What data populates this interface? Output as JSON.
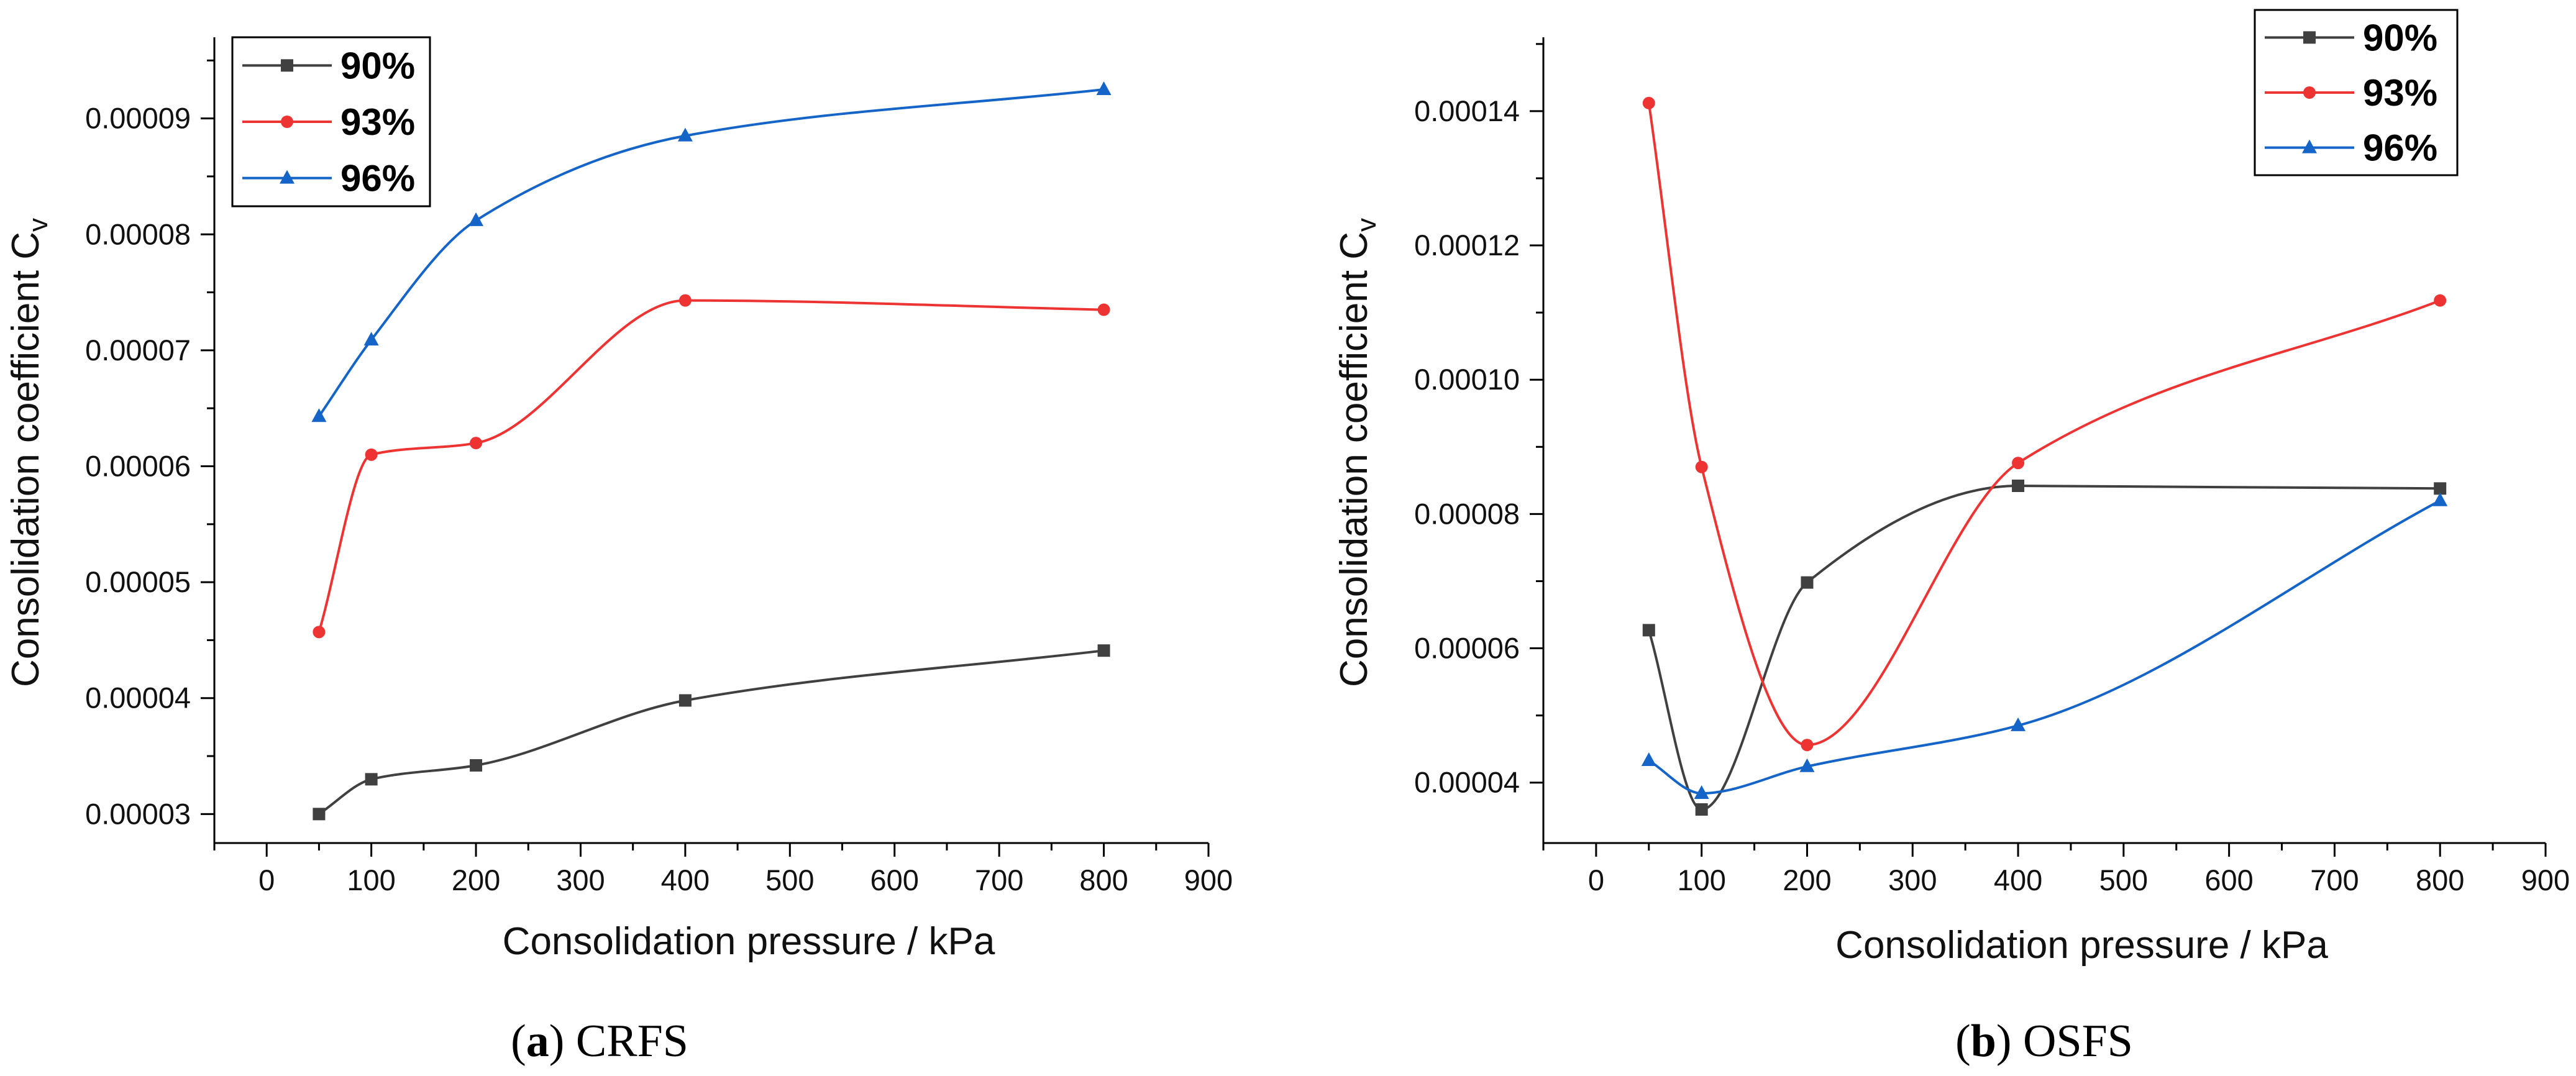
{
  "chart_data": [
    {
      "type": "line",
      "panel_letter": "a",
      "panel_title": "CRFS",
      "xlabel": "Consolidation pressure / kPa",
      "ylabel_main": "Consolidation coefficient C",
      "ylabel_sub": "v",
      "xlim": [
        -50,
        900
      ],
      "ylim": [
        2.75e-05,
        9.7e-05
      ],
      "x_ticks": [
        0,
        100,
        200,
        300,
        400,
        500,
        600,
        700,
        800,
        900
      ],
      "x_tick_labels": [
        "0",
        "100",
        "200",
        "300",
        "400",
        "500",
        "600",
        "700",
        "800",
        "900"
      ],
      "y_ticks": [
        3e-05,
        4e-05,
        5e-05,
        6e-05,
        7e-05,
        8e-05,
        9e-05
      ],
      "y_tick_labels": [
        "0.00003",
        "0.00004",
        "0.00005",
        "0.00006",
        "0.00007",
        "0.00008",
        "0.00009"
      ],
      "grid": false,
      "legend_position": "top-left",
      "x": [
        50,
        100,
        200,
        400,
        800
      ],
      "series": [
        {
          "name": "90%",
          "color": "#404040",
          "marker": "square",
          "values": [
            3e-05,
            3.3e-05,
            3.42e-05,
            3.98e-05,
            4.41e-05
          ]
        },
        {
          "name": "93%",
          "color": "#ee3333",
          "marker": "circle",
          "values": [
            4.57e-05,
            6.1e-05,
            6.2e-05,
            7.43e-05,
            7.35e-05
          ]
        },
        {
          "name": "96%",
          "color": "#1565c8",
          "marker": "triangle",
          "values": [
            6.43e-05,
            7.09e-05,
            8.12e-05,
            8.85e-05,
            9.25e-05
          ]
        }
      ]
    },
    {
      "type": "line",
      "panel_letter": "b",
      "panel_title": "OSFS",
      "xlabel": "Consolidation pressure / kPa",
      "ylabel_main": "Consolidation coefficient C",
      "ylabel_sub": "v",
      "xlim": [
        -50,
        900
      ],
      "ylim": [
        3.1e-05,
        0.000151
      ],
      "x_ticks": [
        0,
        100,
        200,
        300,
        400,
        500,
        600,
        700,
        800,
        900
      ],
      "x_tick_labels": [
        "0",
        "100",
        "200",
        "300",
        "400",
        "500",
        "600",
        "700",
        "800",
        "900"
      ],
      "y_ticks": [
        4e-05,
        6e-05,
        8e-05,
        0.0001,
        0.00012,
        0.00014
      ],
      "y_tick_labels": [
        "0.00004",
        "0.00006",
        "0.00008",
        "0.00010",
        "0.00012",
        "0.00014"
      ],
      "grid": false,
      "legend_position": "top-right",
      "x": [
        50,
        100,
        200,
        400,
        800
      ],
      "series": [
        {
          "name": "90%",
          "color": "#404040",
          "marker": "square",
          "values": [
            6.27e-05,
            3.6e-05,
            6.98e-05,
            8.42e-05,
            8.38e-05
          ]
        },
        {
          "name": "93%",
          "color": "#ee3333",
          "marker": "circle",
          "values": [
            0.0001412,
            8.7e-05,
            4.56e-05,
            8.76e-05,
            0.0001118
          ]
        },
        {
          "name": "96%",
          "color": "#1565c8",
          "marker": "triangle",
          "values": [
            4.33e-05,
            3.84e-05,
            4.24e-05,
            4.85e-05,
            8.2e-05
          ]
        }
      ]
    }
  ]
}
